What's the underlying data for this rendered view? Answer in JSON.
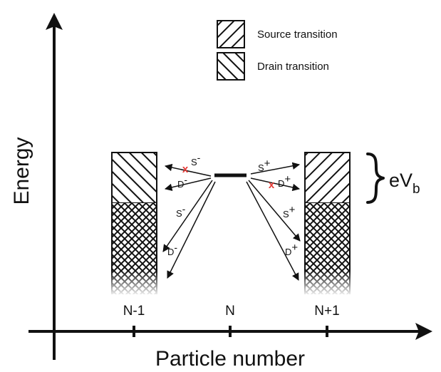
{
  "axes": {
    "x_title": "Particle number",
    "y_title": "Energy",
    "ticks": [
      "N-1",
      "N",
      "N+1"
    ]
  },
  "legend": {
    "source": "Source transition",
    "drain": "Drain transition"
  },
  "bias_label": "eV",
  "bias_subscript": "b",
  "arrows": {
    "left_upper_s": "S",
    "left_upper_d": "D",
    "left_lower_s": "S",
    "left_lower_d": "D",
    "right_upper_s": "S",
    "right_upper_d": "D",
    "right_lower_s": "S",
    "right_lower_d": "D",
    "minus": "-",
    "plus": "+"
  },
  "blocked_mark": "x",
  "colors": {
    "ink": "#111111",
    "blocked": "#e53935"
  }
}
